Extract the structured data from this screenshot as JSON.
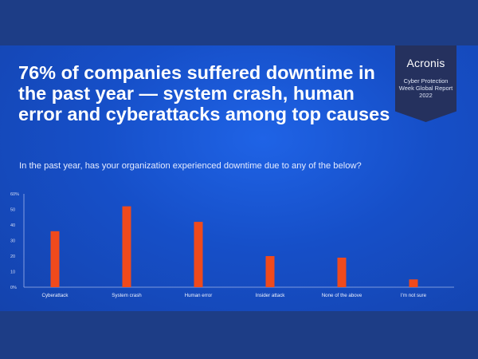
{
  "headline": "76% of companies suffered downtime in the past year — system crash, human error and cyberattacks among top causes",
  "subtitle": "In the past year, has your organization experienced downtime due to any of the below?",
  "badge": {
    "brand": "Acronis",
    "report": "Cyber Protection Week Global Report 2022"
  },
  "colors": {
    "background": "#1d3d86",
    "panel": "#164fc8",
    "bar": "#f04a1c",
    "badge": "#25315e"
  },
  "chart_data": {
    "type": "bar",
    "title": "",
    "xlabel": "",
    "ylabel": "",
    "categories": [
      "Cyberattack",
      "System crash",
      "Human error",
      "Insider attack",
      "None of the above",
      "I'm not sure"
    ],
    "values": [
      36,
      52,
      42,
      20,
      19,
      5
    ],
    "ylim": [
      0,
      60
    ],
    "yticks": [
      "0%",
      "10",
      "20",
      "30",
      "40",
      "50",
      "60%"
    ],
    "grid": false,
    "legend": "none"
  }
}
